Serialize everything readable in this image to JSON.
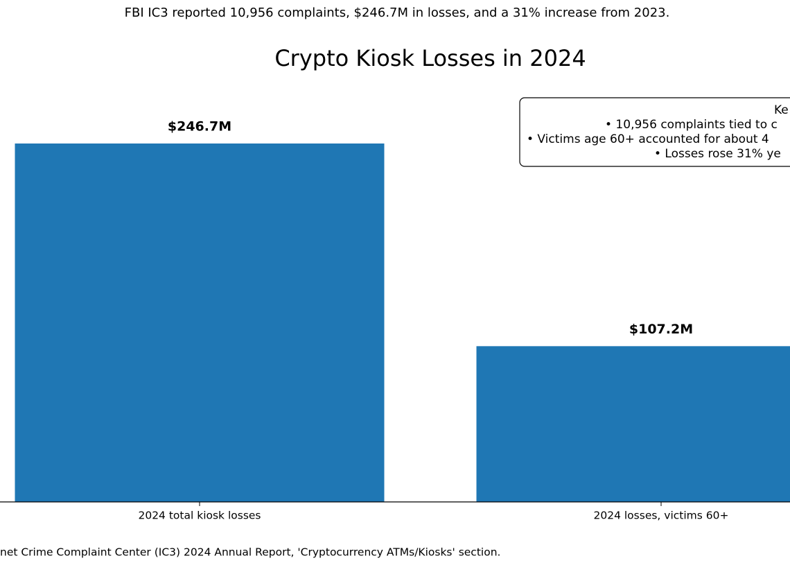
{
  "chart_data": {
    "type": "bar",
    "subtitle": "FBI IC3 reported 10,956 complaints, $246.7M in losses, and a 31% increase from 2023.",
    "title": "Crypto Kiosk Losses in 2024",
    "categories": [
      "2024 total kiosk losses",
      "2024 losses, victims 60+"
    ],
    "values": [
      246.7,
      107.2
    ],
    "value_labels": [
      "$246.7M",
      "$107.2M"
    ],
    "color": "#1f77b4",
    "ylim": [
      0,
      259
    ],
    "annotation": [
      "Ke",
      "• 10,956 complaints tied to c",
      "• Victims age 60+ accounted for about 4",
      "• Losses rose 31% ye"
    ],
    "source": "net Crime Complaint Center (IC3) 2024 Annual Report, 'Cryptocurrency ATMs/Kiosks' section."
  }
}
